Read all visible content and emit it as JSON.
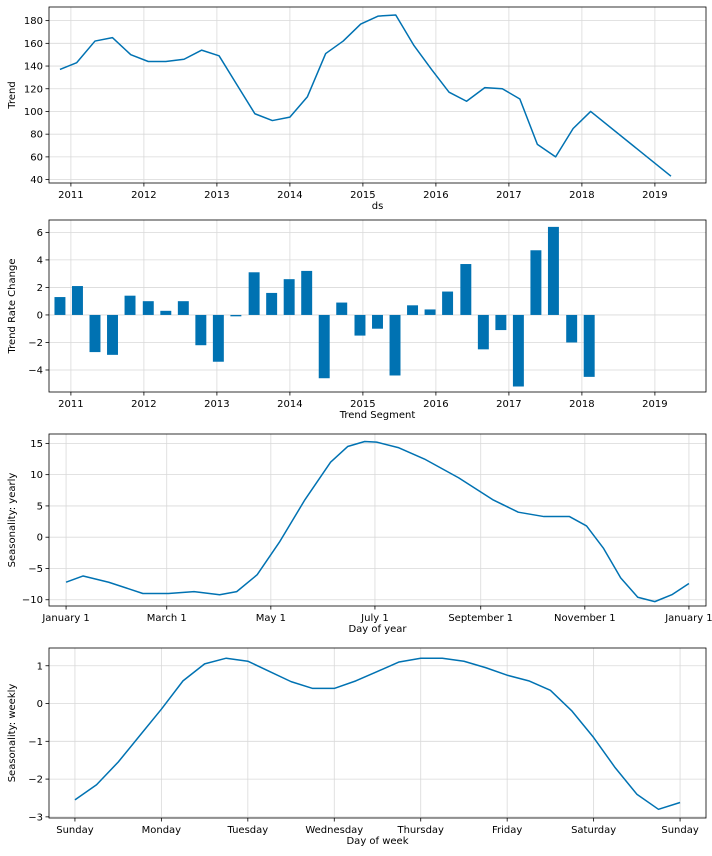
{
  "colors": {
    "series": "#0072B2",
    "grid": "#d9d9d9",
    "frame": "#000000"
  },
  "chart_data": [
    {
      "type": "line",
      "xlabel": "ds",
      "ylabel": "Trend",
      "grid": true,
      "xlim": [
        2010.7,
        2019.7
      ],
      "ylim": [
        37,
        192
      ],
      "xticks": [
        2011,
        2012,
        2013,
        2014,
        2015,
        2016,
        2017,
        2018,
        2019
      ],
      "xticklabels": [
        "2011",
        "2012",
        "2013",
        "2014",
        "2015",
        "2016",
        "2017",
        "2018",
        "2019"
      ],
      "yticks": [
        40,
        60,
        80,
        100,
        120,
        140,
        160,
        180
      ],
      "yticklabels": [
        "40",
        "60",
        "80",
        "100",
        "120",
        "140",
        "160",
        "180"
      ],
      "x": [
        2010.85,
        2011.08,
        2011.33,
        2011.57,
        2011.82,
        2012.06,
        2012.3,
        2012.55,
        2012.79,
        2013.03,
        2013.27,
        2013.52,
        2013.76,
        2014.0,
        2014.24,
        2014.49,
        2014.73,
        2014.97,
        2015.21,
        2015.45,
        2015.7,
        2015.94,
        2016.18,
        2016.42,
        2016.67,
        2016.91,
        2017.15,
        2017.39,
        2017.64,
        2017.88,
        2018.12,
        2019.22
      ],
      "y": [
        137,
        143,
        162,
        165,
        150,
        144,
        144,
        146,
        154,
        149,
        124,
        98,
        92,
        95,
        113,
        151,
        162,
        177,
        184,
        185,
        158,
        137,
        117,
        109,
        121,
        120,
        111,
        71,
        60,
        85,
        100,
        43
      ]
    },
    {
      "type": "bar",
      "xlabel": "Trend Segment",
      "ylabel": "Trend Rate Change",
      "grid": true,
      "xlim": [
        2010.7,
        2019.7
      ],
      "ylim": [
        -5.6,
        6.9
      ],
      "xticks": [
        2011,
        2012,
        2013,
        2014,
        2015,
        2016,
        2017,
        2018,
        2019
      ],
      "xticklabels": [
        "2011",
        "2012",
        "2013",
        "2014",
        "2015",
        "2016",
        "2017",
        "2018",
        "2019"
      ],
      "yticks": [
        -4,
        -2,
        0,
        2,
        4,
        6
      ],
      "yticklabels": [
        "−4",
        "−2",
        "0",
        "2",
        "4",
        "6"
      ],
      "bar_width": 0.15,
      "x": [
        2010.85,
        2011.09,
        2011.33,
        2011.57,
        2011.81,
        2012.06,
        2012.3,
        2012.54,
        2012.78,
        2013.02,
        2013.26,
        2013.51,
        2013.75,
        2013.99,
        2014.23,
        2014.47,
        2014.71,
        2014.96,
        2015.2,
        2015.44,
        2015.68,
        2015.92,
        2016.16,
        2016.41,
        2016.65,
        2016.89,
        2017.13,
        2017.37,
        2017.61,
        2017.86,
        2018.1
      ],
      "values": [
        1.3,
        2.1,
        -2.7,
        -2.9,
        1.4,
        1.0,
        0.3,
        1.0,
        -2.2,
        -3.4,
        -0.1,
        3.1,
        1.6,
        2.6,
        3.2,
        -4.6,
        0.9,
        -1.5,
        -1.0,
        -4.4,
        0.7,
        0.4,
        1.7,
        3.7,
        -2.5,
        -1.1,
        -5.2,
        4.7,
        6.4,
        -2.0,
        -4.5
      ]
    },
    {
      "type": "line",
      "xlabel": "Day of year",
      "ylabel": "Seasonality: yearly",
      "grid": true,
      "xlim": [
        -10,
        375
      ],
      "ylim": [
        -11,
        16.5
      ],
      "xticks": [
        0,
        59,
        120,
        181,
        243,
        304,
        365
      ],
      "xticklabels": [
        "January 1",
        "March 1",
        "May 1",
        "July 1",
        "September 1",
        "November 1",
        "January 1"
      ],
      "yticks": [
        -10,
        -5,
        0,
        5,
        10,
        15
      ],
      "yticklabels": [
        "−10",
        "−5",
        "0",
        "5",
        "10",
        "15"
      ],
      "x": [
        0,
        10,
        25,
        45,
        60,
        75,
        90,
        100,
        112,
        125,
        140,
        155,
        165,
        175,
        182,
        195,
        210,
        230,
        250,
        265,
        280,
        295,
        305,
        315,
        325,
        335,
        345,
        355,
        365
      ],
      "y": [
        -7.2,
        -6.2,
        -7.2,
        -9.0,
        -9.0,
        -8.7,
        -9.2,
        -8.7,
        -6.0,
        -0.8,
        6.0,
        12.0,
        14.5,
        15.3,
        15.2,
        14.3,
        12.5,
        9.5,
        6.0,
        4.0,
        3.3,
        3.3,
        1.8,
        -1.8,
        -6.5,
        -9.6,
        -10.3,
        -9.2,
        -7.4
      ]
    },
    {
      "type": "line",
      "xlabel": "Day of week",
      "ylabel": "Seasonality: weekly",
      "grid": true,
      "xlim": [
        -0.3,
        7.3
      ],
      "ylim": [
        -3.03,
        1.47
      ],
      "xticks": [
        0,
        1,
        2,
        3,
        4,
        5,
        6,
        7
      ],
      "xticklabels": [
        "Sunday",
        "Monday",
        "Tuesday",
        "Wednesday",
        "Thursday",
        "Friday",
        "Saturday",
        "Sunday"
      ],
      "yticks": [
        -3,
        -2,
        -1,
        0,
        1
      ],
      "yticklabels": [
        "−3",
        "−2",
        "−1",
        "0",
        "1"
      ],
      "x": [
        0,
        0.25,
        0.5,
        0.75,
        1.0,
        1.25,
        1.5,
        1.75,
        2.0,
        2.25,
        2.5,
        2.75,
        3.0,
        3.25,
        3.5,
        3.75,
        4.0,
        4.25,
        4.5,
        4.75,
        5.0,
        5.25,
        5.5,
        5.75,
        6.0,
        6.25,
        6.5,
        6.75,
        7.0
      ],
      "y": [
        -2.55,
        -2.15,
        -1.55,
        -0.85,
        -0.15,
        0.6,
        1.05,
        1.2,
        1.12,
        0.85,
        0.58,
        0.4,
        0.4,
        0.6,
        0.85,
        1.1,
        1.2,
        1.2,
        1.12,
        0.95,
        0.75,
        0.6,
        0.35,
        -0.2,
        -0.9,
        -1.7,
        -2.4,
        -2.8,
        -2.62
      ]
    }
  ]
}
